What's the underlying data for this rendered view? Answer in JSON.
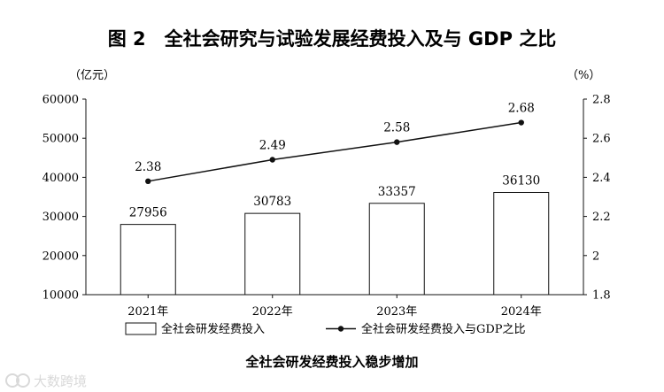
{
  "chart_data": {
    "type": "bar",
    "title": "图 2　全社会研究与试验发展经费投入及与 GDP 之比",
    "left_axis_unit": "（亿元）",
    "right_axis_unit": "（%）",
    "categories": [
      "2021年",
      "2022年",
      "2023年",
      "2024年"
    ],
    "series": [
      {
        "name": "全社会研发经费投入",
        "type": "bar",
        "axis": "left",
        "values": [
          27956,
          30783,
          33357,
          36130
        ],
        "labels": [
          "27956",
          "30783",
          "33357",
          "36130"
        ]
      },
      {
        "name": "全社会研发经费投入与GDP之比",
        "type": "line",
        "axis": "right",
        "values": [
          2.38,
          2.49,
          2.58,
          2.68
        ],
        "labels": [
          "2.38",
          "2.49",
          "2.58",
          "2.68"
        ]
      }
    ],
    "left_axis": {
      "min": 10000,
      "max": 60000,
      "ticks": [
        10000,
        20000,
        30000,
        40000,
        50000,
        60000
      ]
    },
    "right_axis": {
      "min": 1.8,
      "max": 2.8,
      "ticks": [
        1.8,
        2,
        2.2,
        2.4,
        2.6,
        2.8
      ],
      "tick_labels": [
        "1.8",
        "2",
        "2.2",
        "2.4",
        "2.6",
        "2.8"
      ]
    },
    "legend_position": "bottom",
    "caption": "全社会研发经费投入稳步增加",
    "grid": false
  },
  "watermark": {
    "text": "大数跨境",
    "icon": "watermark-logo-icon"
  },
  "colors": {
    "ink": "#111111",
    "bar_fill": "#ffffff",
    "background": "#ffffff",
    "watermark": "#d9d9d9"
  }
}
